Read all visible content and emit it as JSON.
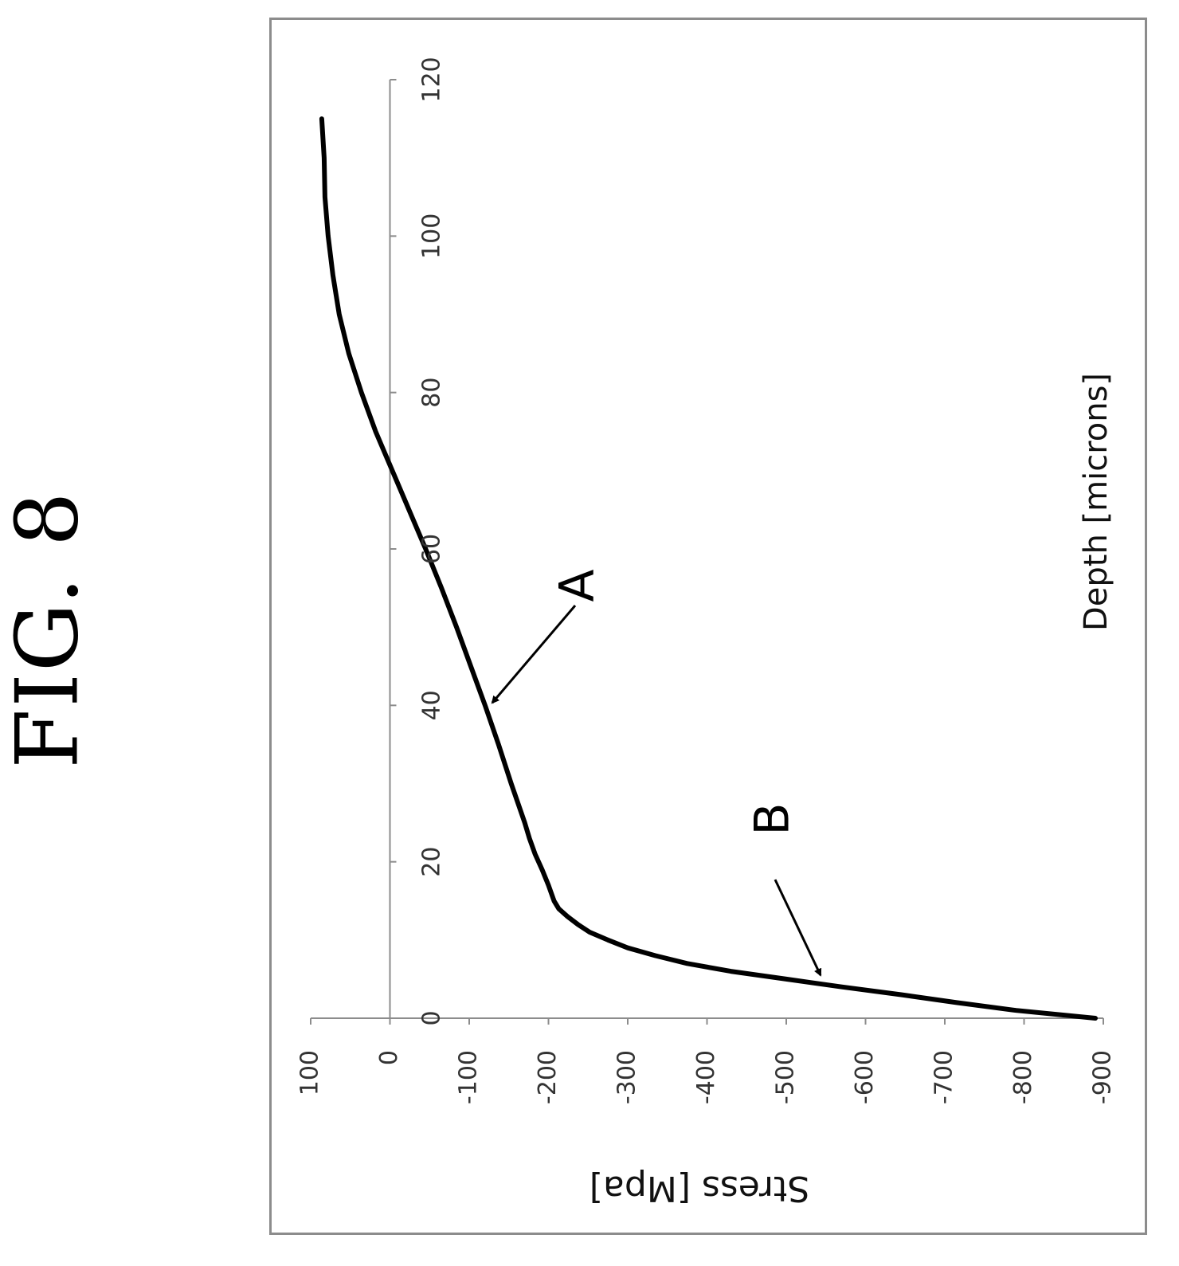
{
  "figure_title": "FIG. 8",
  "chart_data": {
    "type": "line",
    "title": "",
    "xlabel": "Depth [microns]",
    "ylabel": "Stress [Mpa]",
    "xlim": [
      0,
      120
    ],
    "ylim": [
      -900,
      100
    ],
    "x_ticks": [
      0,
      20,
      40,
      60,
      80,
      100,
      120
    ],
    "x_tick_labels": [
      "0",
      "20",
      "40",
      "60",
      "80",
      "100",
      "120"
    ],
    "y_ticks": [
      100,
      0,
      -100,
      -200,
      -300,
      -400,
      -500,
      -600,
      -700,
      -800,
      -900
    ],
    "y_tick_labels": [
      "100",
      "0",
      "-100",
      "-200",
      "-300",
      "-400",
      "-500",
      "-600",
      "-700",
      "-800",
      "-900"
    ],
    "grid": false,
    "legend": "none",
    "orientation": "rotated 90 degrees counter-clockwise",
    "series": [
      {
        "color": "#000000",
        "x": [
          0,
          1,
          2,
          3,
          4,
          5,
          6,
          7,
          8,
          9,
          10,
          11,
          12,
          13,
          14,
          15,
          17,
          19,
          21,
          23,
          25,
          30,
          35,
          40,
          45,
          50,
          55,
          60,
          65,
          70,
          75,
          80,
          85,
          90,
          95,
          100,
          105,
          110,
          115
        ],
        "y": [
          -890,
          -790,
          -715,
          -645,
          -570,
          -500,
          -430,
          -375,
          -335,
          -300,
          -275,
          -252,
          -237,
          -224,
          -213,
          -207,
          -200,
          -192,
          -183,
          -176,
          -170,
          -153,
          -137,
          -120,
          -102,
          -84,
          -65,
          -45,
          -24,
          -3,
          18,
          36,
          52,
          64,
          72,
          78,
          82,
          83,
          86
        ]
      }
    ],
    "annotations": [
      {
        "text": "A",
        "x": 40,
        "y": -130
      },
      {
        "text": "B",
        "x": 5,
        "y": -545
      }
    ]
  }
}
